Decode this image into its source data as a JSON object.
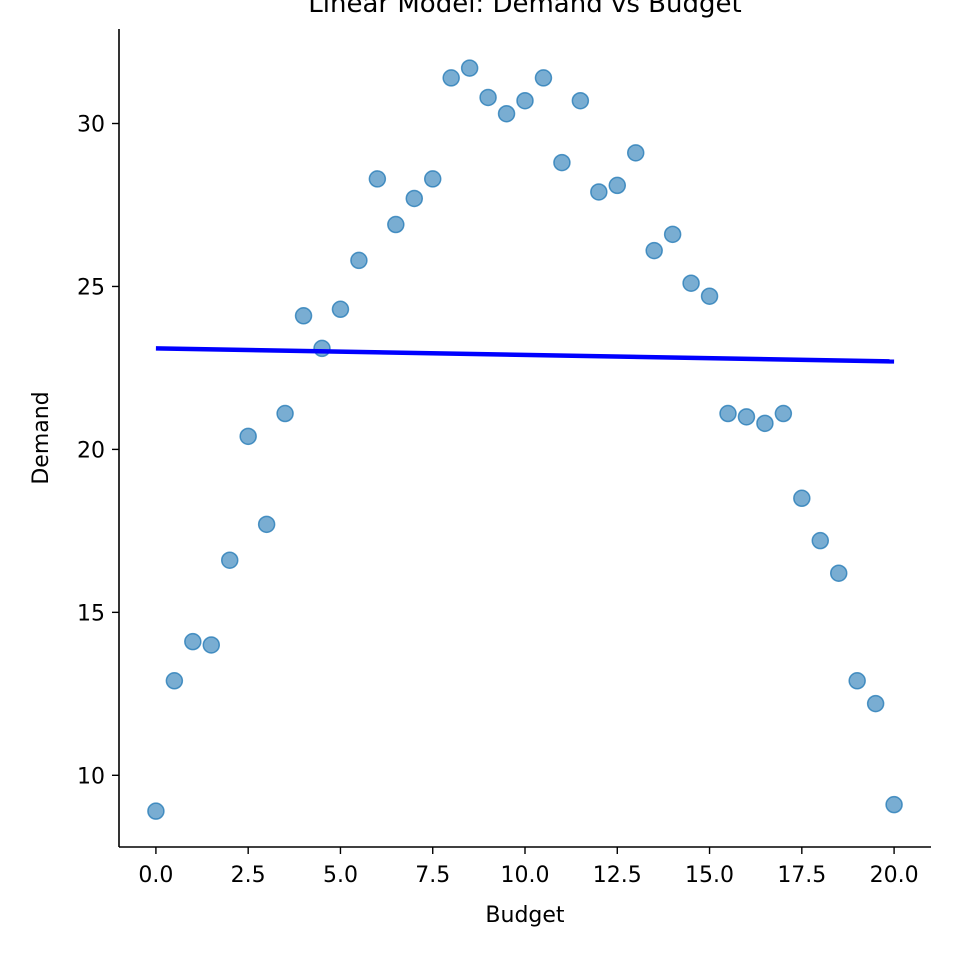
{
  "chart_data": {
    "type": "scatter",
    "title": "Linear Model: Demand vs Budget",
    "xlabel": "Budget",
    "ylabel": "Demand",
    "xlim": [
      -1.0,
      21.0
    ],
    "ylim": [
      7.8,
      32.9
    ],
    "xticks": [
      0.0,
      2.5,
      5.0,
      7.5,
      10.0,
      12.5,
      15.0,
      17.5,
      20.0
    ],
    "xtick_labels": [
      "0.0",
      "2.5",
      "5.0",
      "7.5",
      "10.0",
      "12.5",
      "15.0",
      "17.5",
      "20.0"
    ],
    "yticks": [
      10,
      15,
      20,
      25,
      30
    ],
    "ytick_labels": [
      "10",
      "15",
      "20",
      "25",
      "30"
    ],
    "grid": false,
    "series": [
      {
        "kind": "scatter",
        "color": "#1f77b4",
        "opacity": 0.6,
        "x": [
          0.0,
          0.5,
          1.0,
          1.5,
          2.0,
          2.5,
          3.0,
          3.5,
          4.0,
          4.5,
          5.0,
          5.5,
          6.0,
          6.5,
          7.0,
          7.5,
          8.0,
          8.5,
          9.0,
          9.5,
          10.0,
          10.5,
          11.0,
          11.5,
          12.0,
          12.5,
          13.0,
          13.5,
          14.0,
          14.5,
          15.0,
          15.5,
          16.0,
          16.5,
          17.0,
          17.5,
          18.0,
          18.5,
          19.0,
          19.5,
          20.0
        ],
        "y": [
          8.9,
          12.9,
          14.1,
          14.0,
          16.6,
          20.4,
          17.7,
          21.1,
          24.1,
          23.1,
          24.3,
          25.8,
          28.3,
          26.9,
          27.7,
          28.3,
          31.4,
          31.7,
          30.8,
          30.3,
          30.7,
          31.4,
          28.8,
          30.7,
          27.9,
          28.1,
          29.1,
          26.1,
          26.6,
          25.1,
          24.7,
          21.1,
          21.0,
          20.8,
          21.1,
          18.5,
          17.2,
          16.2,
          12.9,
          12.2,
          9.1
        ]
      },
      {
        "kind": "line",
        "color": "#0000ff",
        "x": [
          0.0,
          20.0
        ],
        "y": [
          23.1,
          22.7
        ]
      }
    ]
  }
}
